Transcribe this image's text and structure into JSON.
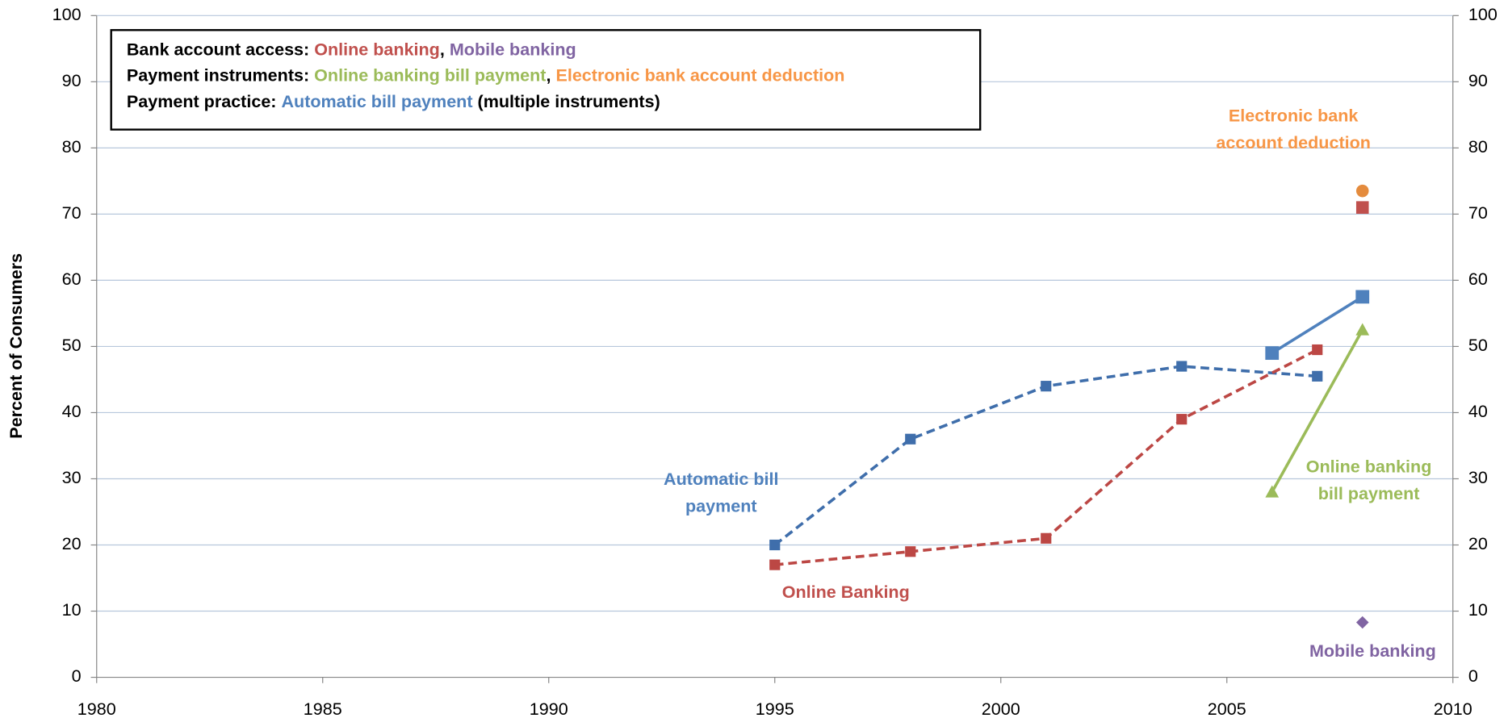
{
  "chart_data": {
    "type": "line",
    "ylabel": "Percent of Consumers",
    "xlim": [
      1980,
      2010
    ],
    "xticks": [
      1980,
      1985,
      1990,
      1995,
      2000,
      2005,
      2010
    ],
    "ylim": [
      0,
      100
    ],
    "yticks": [
      0,
      10,
      20,
      30,
      40,
      50,
      60,
      70,
      80,
      90,
      100
    ],
    "y2lim": [
      0,
      100
    ],
    "y2ticks": [
      0,
      10,
      20,
      30,
      40,
      50,
      60,
      70,
      80,
      90,
      100
    ],
    "grid": true,
    "legend_box": [
      [
        {
          "text": "Bank account access: ",
          "color": "#000000"
        },
        {
          "text": "Online banking",
          "color": "#c0504d"
        },
        {
          "text": ", ",
          "color": "#000000"
        },
        {
          "text": "Mobile banking",
          "color": "#8064a2"
        }
      ],
      [
        {
          "text": "Payment instruments: ",
          "color": "#000000"
        },
        {
          "text": "Online banking bill payment",
          "color": "#9bbb59"
        },
        {
          "text": ", ",
          "color": "#000000"
        },
        {
          "text": "Electronic bank account deduction",
          "color": "#f79646"
        }
      ],
      [
        {
          "text": "Payment practice: ",
          "color": "#000000"
        },
        {
          "text": "Automatic bill payment",
          "color": "#4f81bd"
        },
        {
          "text": " (multiple instruments)",
          "color": "#000000"
        }
      ]
    ],
    "series": [
      {
        "color": "#3f6eab",
        "dashed": true,
        "marker": "square",
        "size": 11,
        "x": [
          1995,
          1998,
          2001,
          2004,
          2007
        ],
        "values": [
          20,
          36,
          44,
          47,
          45.5
        ]
      },
      {
        "color": "#bc4744",
        "dashed": true,
        "marker": "square",
        "size": 11,
        "x": [
          1995,
          1998,
          2001,
          2004,
          2007
        ],
        "values": [
          17,
          19,
          21,
          39,
          49.5
        ]
      },
      {
        "color": "#4f81bd",
        "dashed": false,
        "marker": "square",
        "size": 14,
        "x": [
          2006,
          2008
        ],
        "values": [
          49,
          57.5
        ]
      },
      {
        "color": "#9bbb59",
        "dashed": false,
        "marker": "triangle",
        "size": 14,
        "x": [
          2006,
          2008
        ],
        "values": [
          28,
          52.5
        ]
      },
      {
        "color": "#e48b3d",
        "dashed": false,
        "marker": "circle",
        "size": 13,
        "x": [
          2008
        ],
        "values": [
          73.5
        ]
      },
      {
        "color": "#c0504d",
        "dashed": false,
        "marker": "square",
        "size": 13,
        "x": [
          2008
        ],
        "values": [
          71
        ]
      },
      {
        "color": "#8064a2",
        "dashed": false,
        "marker": "diamond",
        "size": 13,
        "x": [
          2008
        ],
        "values": [
          8.3
        ]
      }
    ],
    "annotations": [
      {
        "lines": [
          "Automatic bill",
          "payment"
        ],
        "color": "#4f81bd"
      },
      {
        "lines": [
          "Online Banking"
        ],
        "color": "#c0504d"
      },
      {
        "lines": [
          "Electronic bank",
          "account deduction"
        ],
        "color": "#f79646"
      },
      {
        "lines": [
          "Online banking",
          "bill payment"
        ],
        "color": "#9bbb59"
      },
      {
        "lines": [
          "Mobile banking"
        ],
        "color": "#8064a2"
      }
    ]
  }
}
